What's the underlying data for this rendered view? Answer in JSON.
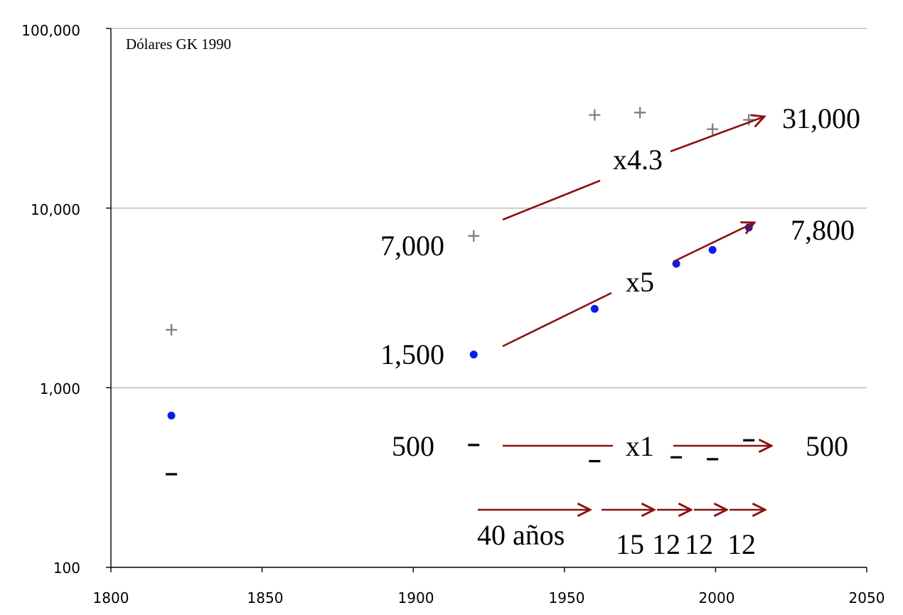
{
  "chart_data": {
    "type": "scatter",
    "x_ticks": [
      "1800",
      "1850",
      "1900",
      "1950",
      "2000",
      "2050"
    ],
    "y_ticks": [
      "100",
      "1,000",
      "10,000",
      "100,000"
    ],
    "xlim": [
      1800,
      2050
    ],
    "ylim": [
      100,
      100000
    ],
    "y_scale": "log",
    "grid": "horizontal",
    "unit_label": "Dólares GK 1990",
    "series": [
      {
        "marker": "plus",
        "color": "#808080",
        "points": [
          [
            1820,
            2100
          ],
          [
            1920,
            7000
          ],
          [
            1960,
            33000
          ],
          [
            1975,
            34000
          ],
          [
            1999,
            27500
          ],
          [
            2011,
            31000
          ]
        ]
      },
      {
        "marker": "dot",
        "color": "#0a1ee6",
        "points": [
          [
            1820,
            700
          ],
          [
            1920,
            1530
          ],
          [
            1960,
            2750
          ],
          [
            1987,
            4900
          ],
          [
            1999,
            5850
          ],
          [
            2011,
            7800
          ]
        ]
      },
      {
        "marker": "minus",
        "color": "#000000",
        "points": [
          [
            1820,
            330
          ],
          [
            1920,
            480
          ],
          [
            1960,
            390
          ],
          [
            1987,
            410
          ],
          [
            1999,
            400
          ],
          [
            2011,
            510
          ]
        ]
      }
    ],
    "value_labels": {
      "top_start": "7,000",
      "top_end": "31,000",
      "top_factor": "x4.3",
      "mid_start": "1,500",
      "mid_end": "7,800",
      "mid_factor": "x5",
      "low_start": "500",
      "low_end": "500",
      "low_factor": "x1"
    },
    "intervals": {
      "first": "40 años",
      "second": "15",
      "third": "12",
      "fourth": "12",
      "fifth": "12"
    },
    "colors": {
      "arrow": "#8b1010",
      "faded_text": "#aaaaaa",
      "grid": "#bfbfbf"
    }
  }
}
